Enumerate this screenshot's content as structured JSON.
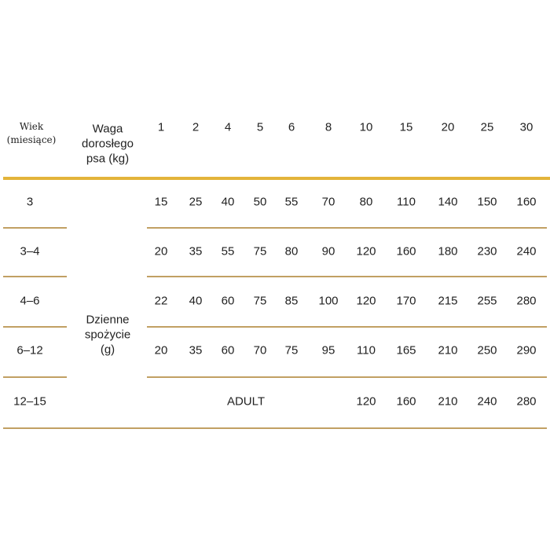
{
  "header": {
    "age_label": [
      "Wiek",
      "(miesiące)"
    ],
    "weight_label": [
      "Waga",
      "dorosłego",
      "psa (kg)"
    ],
    "weights": [
      "1",
      "2",
      "4",
      "5",
      "6",
      "8",
      "10",
      "15",
      "20",
      "25",
      "30"
    ]
  },
  "side_label": [
    "Dzienne",
    "spożycie",
    "(g)"
  ],
  "rows": [
    {
      "age": "3",
      "values": [
        "15",
        "25",
        "40",
        "50",
        "55",
        "70",
        "80",
        "110",
        "140",
        "150",
        "160"
      ]
    },
    {
      "age": "3–4",
      "values": [
        "20",
        "35",
        "55",
        "75",
        "80",
        "90",
        "120",
        "160",
        "180",
        "230",
        "240"
      ]
    },
    {
      "age": "4–6",
      "values": [
        "22",
        "40",
        "60",
        "75",
        "85",
        "100",
        "120",
        "170",
        "215",
        "255",
        "280"
      ]
    },
    {
      "age": "6–12",
      "values": [
        "20",
        "35",
        "60",
        "70",
        "75",
        "95",
        "110",
        "165",
        "210",
        "250",
        "290"
      ]
    },
    {
      "age": "12–15",
      "adult_label": "ADULT",
      "values": [
        "120",
        "160",
        "210",
        "240",
        "280"
      ]
    }
  ],
  "colors": {
    "header_rule": "#e3b43a",
    "row_rule": "#c1a063"
  }
}
